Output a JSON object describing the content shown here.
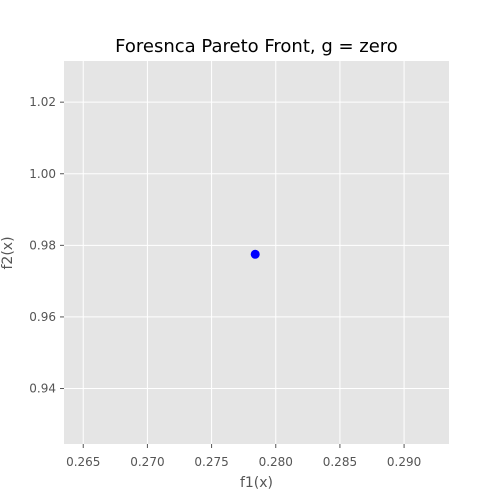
{
  "chart_data": {
    "type": "scatter",
    "title": "Foresnca Pareto Front,  g = zero",
    "xlabel": "f1(x)",
    "ylabel": "f2(x)",
    "xlim": [
      0.2635,
      0.2935
    ],
    "ylim": [
      0.9245,
      1.0315
    ],
    "x_ticks": [
      0.265,
      0.27,
      0.275,
      0.28,
      0.285,
      0.29
    ],
    "x_tick_labels": [
      "0.265",
      "0.270",
      "0.275",
      "0.280",
      "0.285",
      "0.290"
    ],
    "y_ticks": [
      0.94,
      0.96,
      0.98,
      1.0,
      1.02
    ],
    "y_tick_labels": [
      "0.94",
      "0.96",
      "0.98",
      "1.00",
      "1.02"
    ],
    "grid": true,
    "series": [
      {
        "points": [
          {
            "x": 0.2784,
            "y": 0.9775
          }
        ]
      }
    ],
    "colors": {
      "background": "#e5e5e5",
      "grid": "#ffffff",
      "point": "#0000ff"
    }
  }
}
